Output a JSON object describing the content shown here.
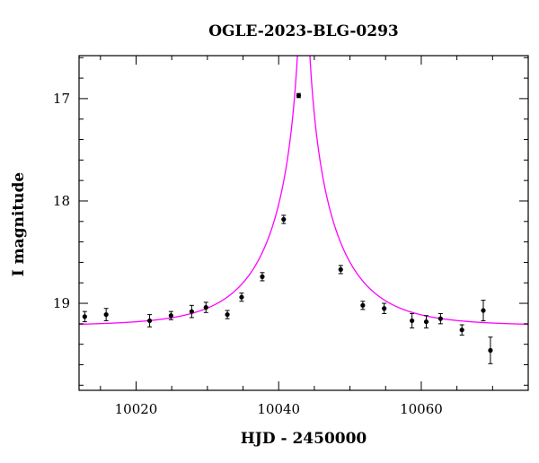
{
  "chart_data": {
    "type": "scatter",
    "title": "OGLE-2023-BLG-0293",
    "xlabel": "HJD - 2450000",
    "ylabel": "I magnitude",
    "xlim": [
      10012,
      10075
    ],
    "ylim": [
      19.85,
      16.58
    ],
    "y_inverted": true,
    "x_ticks": [
      10020,
      10040,
      10060
    ],
    "y_ticks": [
      17,
      18,
      19
    ],
    "grid": false,
    "colors": {
      "points": "#000000",
      "model": "#ff00ff",
      "frame": "#000000"
    },
    "model": {
      "type": "line",
      "description_free": true,
      "t0": 10043.5,
      "u0": 0.01,
      "tE": 10.0,
      "baseline_mag": 19.22,
      "peak_mag": 15.5
    },
    "series": [
      {
        "marker": "point-with-errorbar",
        "points": [
          {
            "x": 10012.8,
            "y": 19.13,
            "err": 0.05
          },
          {
            "x": 10015.8,
            "y": 19.11,
            "err": 0.06
          },
          {
            "x": 10021.9,
            "y": 19.17,
            "err": 0.06
          },
          {
            "x": 10024.9,
            "y": 19.12,
            "err": 0.04
          },
          {
            "x": 10027.8,
            "y": 19.08,
            "err": 0.06
          },
          {
            "x": 10029.8,
            "y": 19.04,
            "err": 0.05
          },
          {
            "x": 10032.8,
            "y": 19.11,
            "err": 0.04
          },
          {
            "x": 10034.8,
            "y": 18.94,
            "err": 0.04
          },
          {
            "x": 10037.7,
            "y": 18.74,
            "err": 0.04
          },
          {
            "x": 10040.7,
            "y": 18.18,
            "err": 0.04
          },
          {
            "x": 10042.8,
            "y": 16.97,
            "err": 0.02
          },
          {
            "x": 10048.7,
            "y": 18.67,
            "err": 0.04
          },
          {
            "x": 10051.8,
            "y": 19.02,
            "err": 0.04
          },
          {
            "x": 10054.8,
            "y": 19.05,
            "err": 0.05
          },
          {
            "x": 10058.7,
            "y": 19.17,
            "err": 0.07
          },
          {
            "x": 10060.7,
            "y": 19.18,
            "err": 0.06
          },
          {
            "x": 10062.7,
            "y": 19.15,
            "err": 0.05
          },
          {
            "x": 10065.7,
            "y": 19.26,
            "err": 0.05
          },
          {
            "x": 10068.7,
            "y": 19.07,
            "err": 0.1
          },
          {
            "x": 10069.7,
            "y": 19.46,
            "err": 0.13
          }
        ]
      }
    ]
  }
}
